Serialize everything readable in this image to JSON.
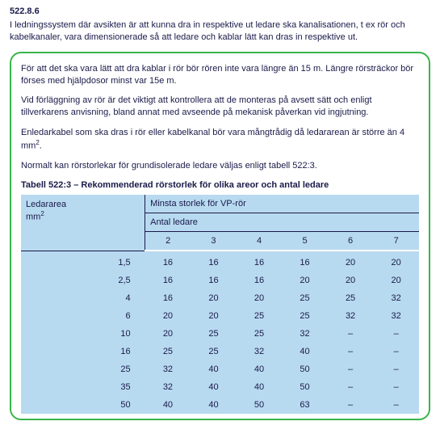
{
  "section_number": "522.8.6",
  "intro": "I ledningssystem där avsikten är att kunna dra in respektive ut ledare ska kanalisationen, t ex rör och kabelkanaler, vara dimensionerade så att ledare och kablar lätt kan dras in respektive ut.",
  "callout": {
    "p1": "För att det ska vara lätt att dra kablar i rör bör rören inte vara längre än 15 m. Längre rörsträckor bör förses med hjälpdosor minst var 15e m.",
    "p2": "Vid förläggning av rör är det viktigt att kontrollera att de monteras på avsett sätt och enligt tillverkarens anvisning, bland annat med avseende på mekanisk påverkan vid ingjutning.",
    "p3_a": "Enledarkabel som ska dras i rör eller kabelkanal bör vara mångtrådig då ledararean är större än 4 mm",
    "p3_sup": "2",
    "p3_b": ".",
    "p4": "Normalt kan rörstorlekar för grundisolerade ledare väljas enligt tabell 522:3."
  },
  "table": {
    "title": "Tabell 522:3 – Rekommenderad rörstorlek för olika areor och antal ledare",
    "corner_line1": "Ledararea",
    "corner_line2_a": "mm",
    "corner_line2_sup": "2",
    "top_span": "Minsta storlek för VP-rör",
    "mid_span": "Antal ledare",
    "col_headers": [
      "2",
      "3",
      "4",
      "5",
      "6",
      "7"
    ],
    "rows": [
      {
        "label": "1,5",
        "cells": [
          "16",
          "16",
          "16",
          "16",
          "20",
          "20"
        ]
      },
      {
        "label": "2,5",
        "cells": [
          "16",
          "16",
          "16",
          "20",
          "20",
          "20"
        ]
      },
      {
        "label": "4",
        "cells": [
          "16",
          "20",
          "20",
          "25",
          "25",
          "32"
        ]
      },
      {
        "label": "6",
        "cells": [
          "20",
          "20",
          "25",
          "25",
          "32",
          "32"
        ]
      },
      {
        "label": "10",
        "cells": [
          "20",
          "25",
          "25",
          "32",
          "–",
          "–"
        ]
      },
      {
        "label": "16",
        "cells": [
          "25",
          "25",
          "32",
          "40",
          "–",
          "–"
        ]
      },
      {
        "label": "25",
        "cells": [
          "32",
          "40",
          "40",
          "50",
          "–",
          "–"
        ]
      },
      {
        "label": "35",
        "cells": [
          "32",
          "40",
          "40",
          "50",
          "–",
          "–"
        ]
      },
      {
        "label": "50",
        "cells": [
          "40",
          "40",
          "50",
          "63",
          "–",
          "–"
        ]
      }
    ]
  },
  "colors": {
    "border_green": "#3ab54a",
    "table_bg": "#b8daf0",
    "text": "#1a1a4a"
  }
}
